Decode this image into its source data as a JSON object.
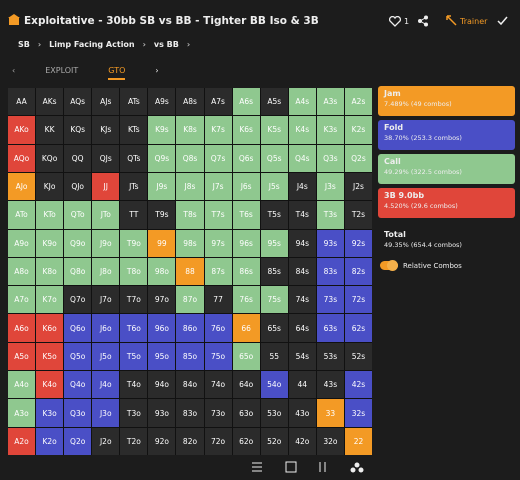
{
  "header": {
    "title": "Exploitative - 30bb SB vs BB - Tighter BB Iso & 3B",
    "likes": "1",
    "trainer": "Trainer"
  },
  "breadcrumb": [
    "SB",
    "Limp Facing Action",
    "vs BB"
  ],
  "tabs": [
    "EXPLOIT",
    "GTO"
  ],
  "grid": {
    "rows": [
      [
        "AA",
        "AKs",
        "AQs",
        "AJs",
        "ATs",
        "A9s",
        "A8s",
        "A7s",
        "A6s",
        "A5s",
        "A4s",
        "A3s",
        "A2s"
      ],
      [
        "AKo",
        "KK",
        "KQs",
        "KJs",
        "KTs",
        "K9s",
        "K8s",
        "K7s",
        "K6s",
        "K5s",
        "K4s",
        "K3s",
        "K2s"
      ],
      [
        "AQo",
        "KQo",
        "QQ",
        "QJs",
        "QTs",
        "Q9s",
        "Q8s",
        "Q7s",
        "Q6s",
        "Q5s",
        "Q4s",
        "Q3s",
        "Q2s"
      ],
      [
        "AJo",
        "KJo",
        "QJo",
        "JJ",
        "JTs",
        "J9s",
        "J8s",
        "J7s",
        "J6s",
        "J5s",
        "J4s",
        "J3s",
        "J2s"
      ],
      [
        "ATo",
        "KTo",
        "QTo",
        "JTo",
        "TT",
        "T9s",
        "T8s",
        "T7s",
        "T6s",
        "T5s",
        "T4s",
        "T3s",
        "T2s"
      ],
      [
        "A9o",
        "K9o",
        "Q9o",
        "J9o",
        "T9o",
        "99",
        "98s",
        "97s",
        "96s",
        "95s",
        "94s",
        "93s",
        "92s"
      ],
      [
        "A8o",
        "K8o",
        "Q8o",
        "J8o",
        "T8o",
        "98o",
        "88",
        "87s",
        "86s",
        "85s",
        "84s",
        "83s",
        "82s"
      ],
      [
        "A7o",
        "K7o",
        "Q7o",
        "J7o",
        "T7o",
        "97o",
        "87o",
        "77",
        "76s",
        "75s",
        "74s",
        "73s",
        "72s"
      ],
      [
        "A6o",
        "K6o",
        "Q6o",
        "J6o",
        "T6o",
        "96o",
        "86o",
        "76o",
        "66",
        "65s",
        "64s",
        "63s",
        "62s"
      ],
      [
        "A5o",
        "K5o",
        "Q5o",
        "J5o",
        "T5o",
        "95o",
        "85o",
        "75o",
        "65o",
        "55",
        "54s",
        "53s",
        "52s"
      ],
      [
        "A4o",
        "K4o",
        "Q4o",
        "J4o",
        "T4o",
        "94o",
        "84o",
        "74o",
        "64o",
        "54o",
        "44",
        "43s",
        "42s"
      ],
      [
        "A3o",
        "K3o",
        "Q3o",
        "J3o",
        "T3o",
        "93o",
        "83o",
        "73o",
        "63o",
        "53o",
        "43o",
        "33",
        "32s"
      ],
      [
        "A2o",
        "K2o",
        "Q2o",
        "J2o",
        "T2o",
        "92o",
        "82o",
        "72o",
        "62o",
        "52o",
        "42o",
        "32o",
        "22"
      ]
    ],
    "colors": [
      [
        "#2b2b2b",
        "#2b2b2b",
        "#2b2b2b",
        "#2b2b2b",
        "#2b2b2b",
        "#2b2b2b",
        "#2b2b2b",
        "#2b2b2b",
        "#8fc88f",
        "#2b2b2b",
        "#8fc88f",
        "#8fc88f",
        "#8fc88f"
      ],
      [
        "#e0463a",
        "#2b2b2b",
        "#2b2b2b",
        "#2b2b2b",
        "#2b2b2b",
        "#8fc88f",
        "#8fc88f",
        "#8fc88f",
        "#8fc88f",
        "#8fc88f",
        "#8fc88f",
        "#8fc88f",
        "#8fc88f"
      ],
      [
        "#e0463a",
        "#2b2b2b",
        "#2b2b2b",
        "#2b2b2b",
        "#2b2b2b",
        "#8fc88f",
        "#8fc88f",
        "#8fc88f",
        "#8fc88f",
        "#8fc88f",
        "#8fc88f",
        "#8fc88f",
        "#8fc88f"
      ],
      [
        "#f39a25",
        "#2b2b2b",
        "#2b2b2b",
        "#e0463a",
        "#2b2b2b",
        "#8fc88f",
        "#8fc88f",
        "#8fc88f",
        "#8fc88f",
        "#8fc88f",
        "#2b2b2b",
        "#8fc88f",
        "#2b2b2b"
      ],
      [
        "#8fc88f",
        "#8fc88f",
        "#8fc88f",
        "#8fc88f",
        "#2b2b2b",
        "#2b2b2b",
        "#8fc88f",
        "#8fc88f",
        "#8fc88f",
        "#2b2b2b",
        "#2b2b2b",
        "#8fc88f",
        "#2b2b2b"
      ],
      [
        "#8fc88f",
        "#8fc88f",
        "#8fc88f",
        "#8fc88f",
        "#8fc88f",
        "#f39a25",
        "#8fc88f",
        "#8fc88f",
        "#8fc88f",
        "#8fc88f",
        "#2b2b2b",
        "#4a4fc6",
        "#4a4fc6"
      ],
      [
        "#8fc88f",
        "#8fc88f",
        "#8fc88f",
        "#8fc88f",
        "#8fc88f",
        "#8fc88f",
        "#f39a25",
        "#8fc88f",
        "#8fc88f",
        "#2b2b2b",
        "#2b2b2b",
        "#4a4fc6",
        "#4a4fc6"
      ],
      [
        "#8fc88f",
        "#8fc88f",
        "#2b2b2b",
        "#2b2b2b",
        "#2b2b2b",
        "#2b2b2b",
        "#8fc88f",
        "#2b2b2b",
        "#8fc88f",
        "#8fc88f",
        "#2b2b2b",
        "#4a4fc6",
        "#4a4fc6"
      ],
      [
        "#e0463a",
        "#e0463a",
        "#4a4fc6",
        "#4a4fc6",
        "#4a4fc6",
        "#4a4fc6",
        "#4a4fc6",
        "#4a4fc6",
        "#f39a25",
        "#2b2b2b",
        "#2b2b2b",
        "#4a4fc6",
        "#4a4fc6"
      ],
      [
        "#e0463a",
        "#e0463a",
        "#4a4fc6",
        "#4a4fc6",
        "#4a4fc6",
        "#4a4fc6",
        "#4a4fc6",
        "#4a4fc6",
        "#8fc88f",
        "#2b2b2b",
        "#2b2b2b",
        "#2b2b2b",
        "#2b2b2b"
      ],
      [
        "#8fc88f",
        "#e0463a",
        "#4a4fc6",
        "#4a4fc6",
        "#2b2b2b",
        "#2b2b2b",
        "#2b2b2b",
        "#2b2b2b",
        "#2b2b2b",
        "#4a4fc6",
        "#2b2b2b",
        "#2b2b2b",
        "#4a4fc6"
      ],
      [
        "#8fc88f",
        "#4a4fc6",
        "#4a4fc6",
        "#4a4fc6",
        "#2b2b2b",
        "#2b2b2b",
        "#2b2b2b",
        "#2b2b2b",
        "#2b2b2b",
        "#2b2b2b",
        "#2b2b2b",
        "#f39a25",
        "#4a4fc6"
      ],
      [
        "#e0463a",
        "#4a4fc6",
        "#4a4fc6",
        "#2b2b2b",
        "#2b2b2b",
        "#2b2b2b",
        "#2b2b2b",
        "#2b2b2b",
        "#2b2b2b",
        "#2b2b2b",
        "#2b2b2b",
        "#2b2b2b",
        "#f39a25"
      ]
    ]
  },
  "legend": [
    {
      "name": "Jam",
      "detail": "7.489% (49 combos)",
      "color": "#f39a25"
    },
    {
      "name": "Fold",
      "detail": "38.70% (253.3 combos)",
      "color": "#4a4fc6"
    },
    {
      "name": "Call",
      "detail": "49.29% (322.5 combos)",
      "color": "#8fc88f"
    },
    {
      "name": "3B 9.0bb",
      "detail": "4.520% (29.6 combos)",
      "color": "#e0463a"
    }
  ],
  "total": {
    "name": "Total",
    "detail": "49.35% (654.4 combos)"
  },
  "toggle": "Relative Combos"
}
